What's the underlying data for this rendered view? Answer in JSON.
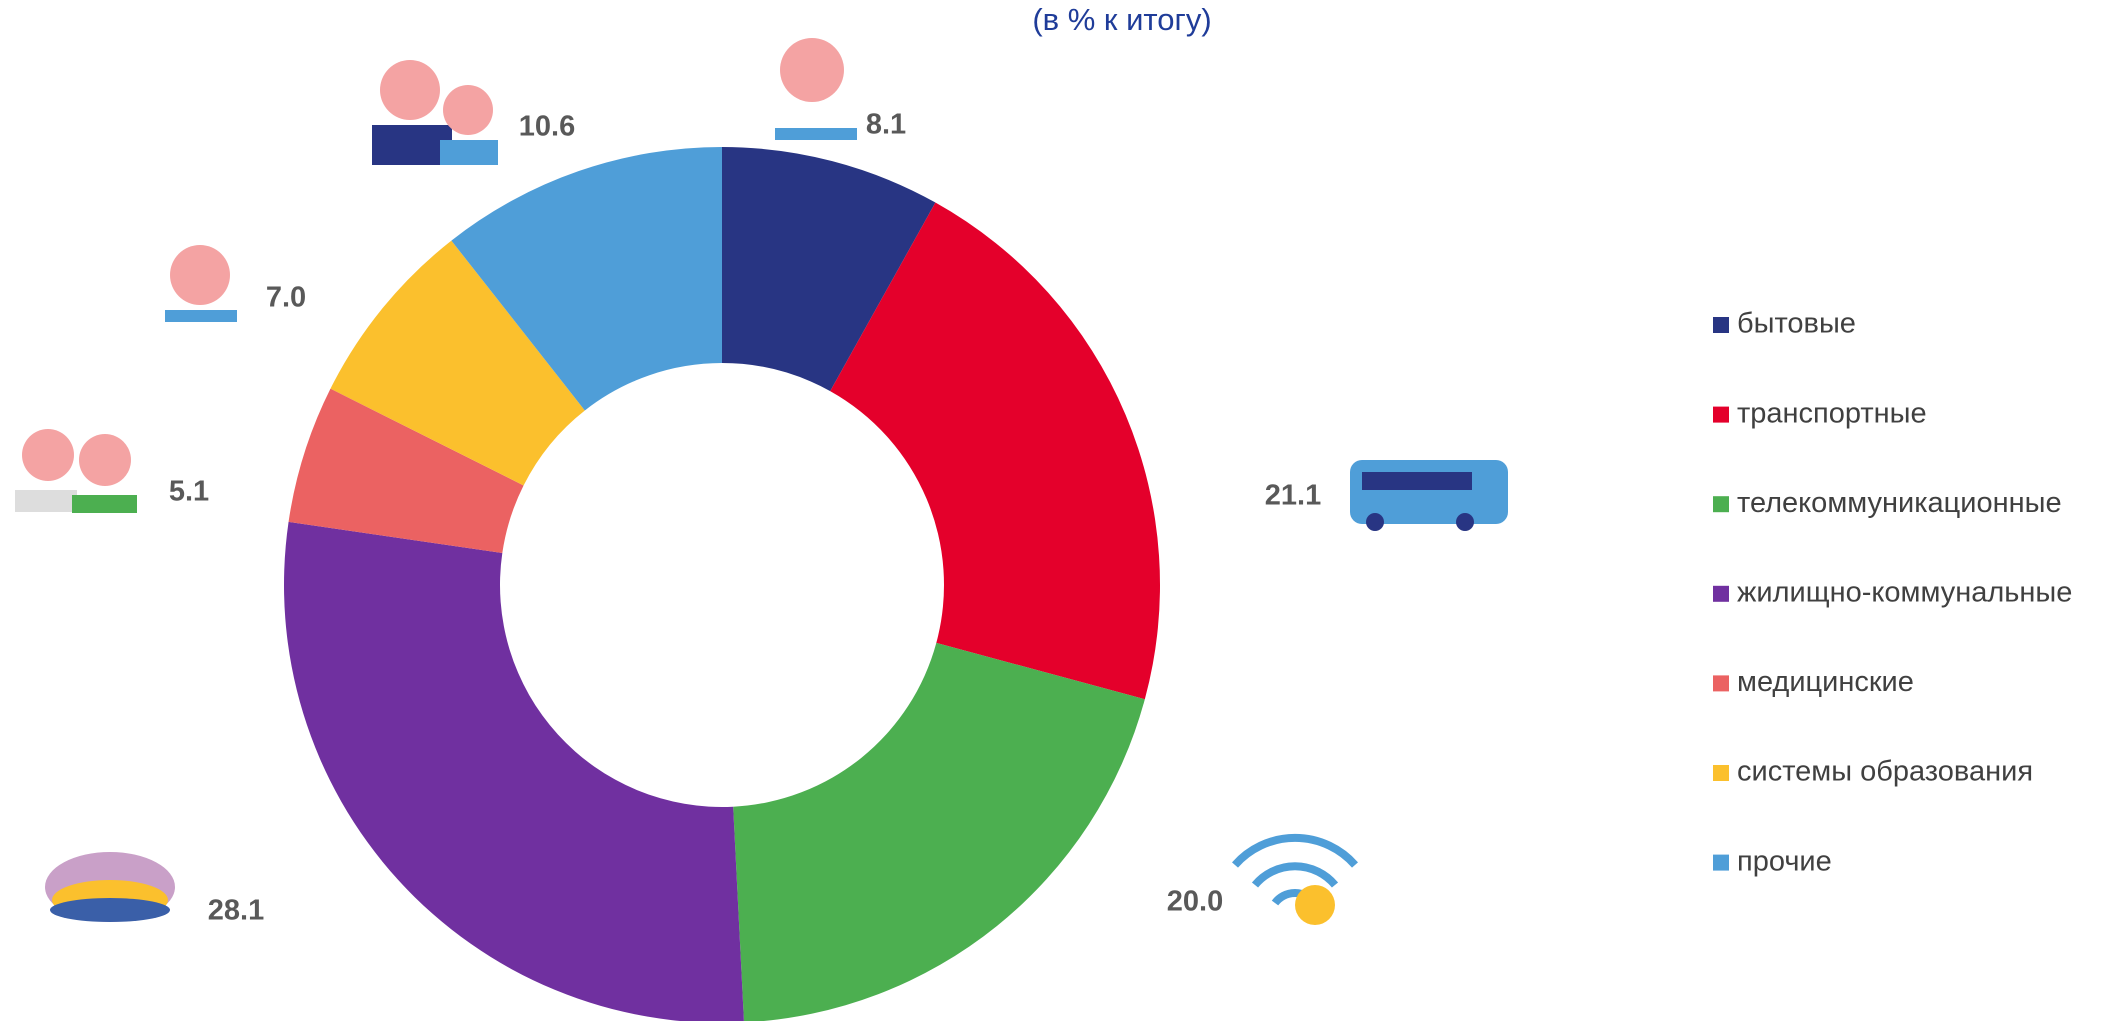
{
  "chart_data": {
    "type": "donut",
    "subtitle": "(в % к итогу)",
    "categories": [
      "бытовые",
      "транспортные",
      "телекоммуникационные",
      "жилищно-коммунальные",
      "медицинские",
      "системы образования",
      "прочие"
    ],
    "values": [
      8.1,
      21.1,
      20.0,
      28.1,
      5.1,
      7.0,
      10.6
    ],
    "value_labels": [
      "8.1",
      "21.1",
      "20.0",
      "28.1",
      "5.1",
      "7.0",
      "10.6"
    ],
    "colors": [
      "#283583",
      "#e4002b",
      "#4caf50",
      "#7030a0",
      "#eb6262",
      "#fbc02d",
      "#4f9ed8"
    ],
    "legend": "right"
  }
}
